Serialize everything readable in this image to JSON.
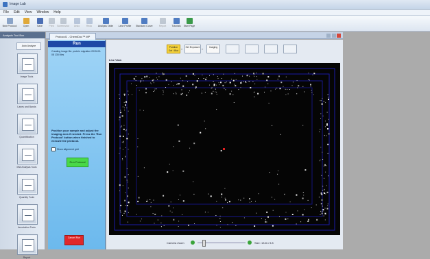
{
  "window": {
    "title": "Image Lab"
  },
  "menu": [
    "File",
    "Edit",
    "View",
    "Window",
    "Help"
  ],
  "toolbar": [
    {
      "label": "New Protocol",
      "icon": "new-protocol-icon",
      "color": "#8aa4c8",
      "enabled": true
    },
    {
      "label": "Open",
      "icon": "open-folder-icon",
      "color": "#e0a93a",
      "enabled": true
    },
    {
      "label": "Save",
      "icon": "save-icon",
      "color": "#4b6fb5",
      "enabled": true
    },
    {
      "label": "Print",
      "icon": "print-icon",
      "color": "#7a8a9c",
      "enabled": false
    },
    {
      "label": "Screenshot",
      "icon": "screenshot-icon",
      "color": "#7a8a9c",
      "enabled": false
    },
    {
      "label": "Undo",
      "icon": "undo-icon",
      "color": "#6a85b0",
      "enabled": false
    },
    {
      "label": "Redo",
      "icon": "redo-icon",
      "color": "#6a85b0",
      "enabled": false
    },
    {
      "label": "Analysis Table",
      "icon": "analysis-table-icon",
      "color": "#4f7cc2",
      "enabled": true
    },
    {
      "label": "Lane Profile",
      "icon": "lane-profile-icon",
      "color": "#4f7cc2",
      "enabled": true
    },
    {
      "label": "Standard Curve",
      "icon": "standard-curve-icon",
      "color": "#4f7cc2",
      "enabled": true
    },
    {
      "label": "Report",
      "icon": "report-icon",
      "color": "#7a8a9c",
      "enabled": false
    },
    {
      "label": "Tutorials",
      "icon": "tutorials-icon",
      "color": "#4f7cc2",
      "enabled": true
    },
    {
      "label": "Start Page",
      "icon": "start-page-icon",
      "color": "#3a9a4a",
      "enabled": true
    }
  ],
  "sidebar": {
    "header": "Analysis Tool Box",
    "button": "Auto Analyze",
    "tools": [
      "Image Tools",
      "Lanes and Bands",
      "Quantification",
      "MW Analysis Tools",
      "Quantity Tools",
      "Annotation Tools",
      "Report"
    ]
  },
  "tab": {
    "label": "Protocol1 - ChemiDoc™ MP"
  },
  "run": {
    "header": "Run",
    "info": "Creating image file: protein migration 2015-09-08 135 Mes",
    "instructions": "Position your sample and adjust the imaging area if needed. Press the 'Run Protocol' button when finished to execute the protocol.",
    "grid_label": "Show alignment grid",
    "run_button": "Run Protocol",
    "cancel_button": "Cancel Run"
  },
  "steps": [
    {
      "label": "Position Gel / Blot",
      "state": "active"
    },
    {
      "label": "Set Exposure",
      "state": "done"
    },
    {
      "label": "Imaging",
      "state": "done"
    },
    {
      "label": "",
      "state": "disabled"
    },
    {
      "label": "",
      "state": "disabled"
    },
    {
      "label": "",
      "state": "disabled"
    },
    {
      "label": "",
      "state": "disabled"
    }
  ],
  "view": {
    "label": "Live View"
  },
  "zoom": {
    "label": "Camera Zoom",
    "level": 0.12,
    "size_text": "Size: 13.8 x 9.8"
  }
}
